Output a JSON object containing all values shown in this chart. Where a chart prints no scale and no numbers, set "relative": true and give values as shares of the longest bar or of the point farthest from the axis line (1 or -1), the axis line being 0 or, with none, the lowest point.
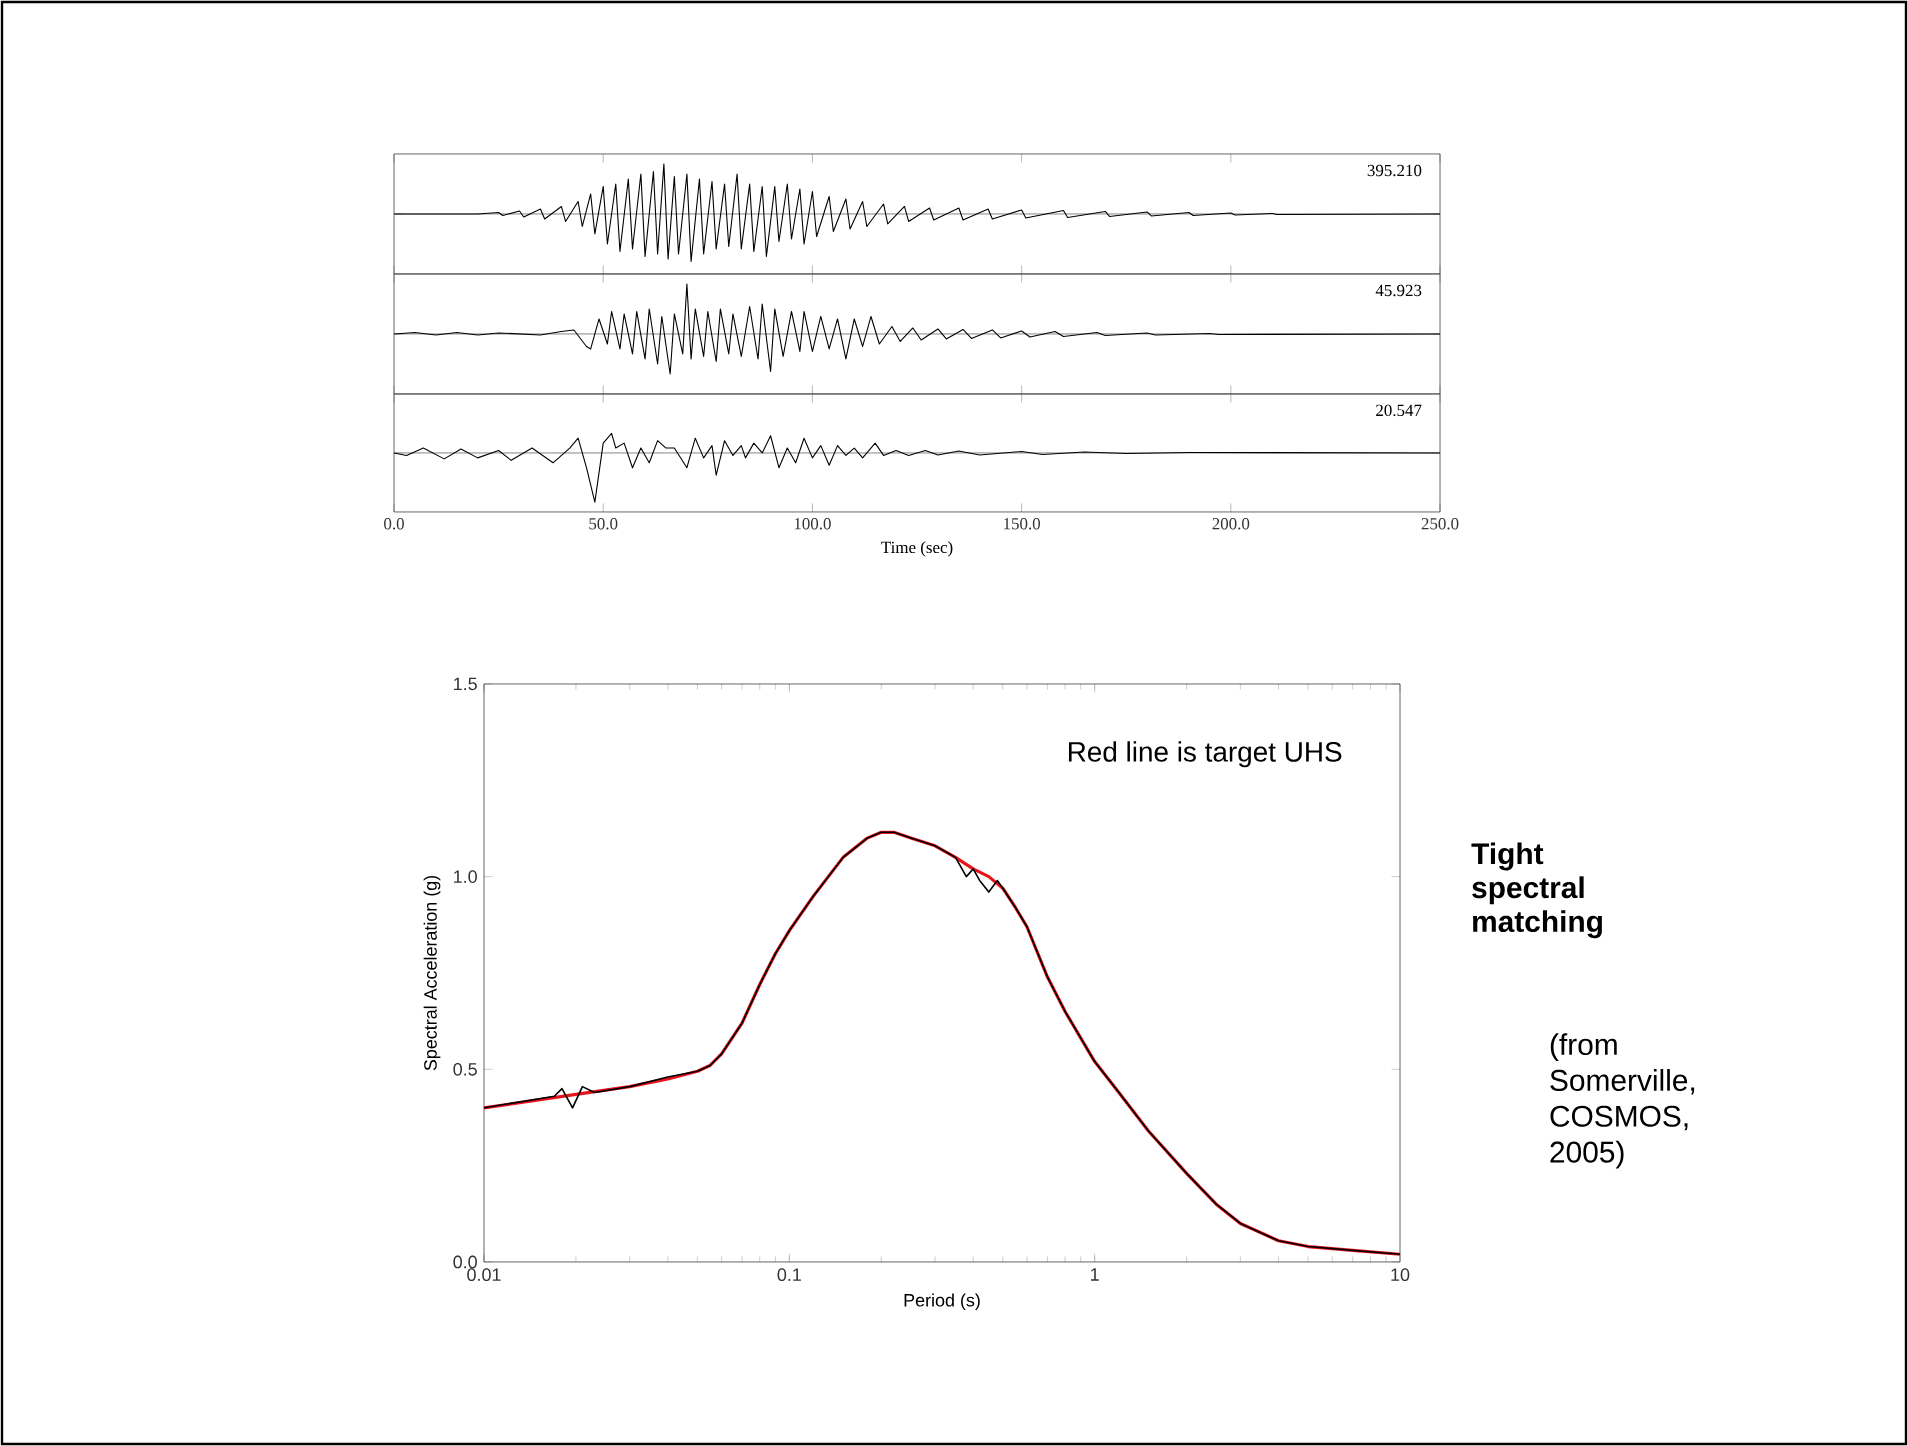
{
  "chart_data": [
    {
      "type": "line",
      "relative": true,
      "xlim": [
        0,
        250
      ],
      "xticks": [
        {
          "value": 0,
          "label": null
        },
        {
          "value": 50,
          "label": null
        },
        {
          "value": 100,
          "label": null
        },
        {
          "value": 150,
          "label": null
        },
        {
          "value": 200,
          "label": null
        },
        {
          "value": 250,
          "label": null
        }
      ],
      "tick_labels": false,
      "annotations": [
        "395.210"
      ],
      "x": [
        0,
        20,
        25,
        26,
        30,
        31,
        35,
        36,
        40,
        41,
        44,
        45,
        47,
        48,
        50,
        51,
        53,
        54,
        56,
        57,
        59,
        60,
        62,
        63,
        64.5,
        65.5,
        67,
        68,
        70,
        71,
        73,
        74,
        76,
        77,
        79,
        80,
        82,
        83,
        85,
        86,
        88,
        89,
        91,
        92,
        94,
        95,
        97,
        98,
        100,
        101,
        104,
        105,
        108,
        109,
        112,
        113,
        117,
        118,
        122,
        123,
        128,
        129,
        135,
        136,
        142,
        143,
        150,
        151,
        160,
        161,
        170,
        171,
        180,
        181,
        190,
        191,
        200,
        201,
        210,
        211,
        250
      ],
      "series": [
        {
          "color": "#000000",
          "values": [
            0,
            0,
            0.03,
            -0.03,
            0.06,
            -0.06,
            0.1,
            -0.1,
            0.15,
            -0.15,
            0.25,
            -0.25,
            0.4,
            -0.4,
            0.55,
            -0.6,
            0.6,
            -0.75,
            0.7,
            -0.7,
            0.8,
            -0.85,
            0.85,
            -0.8,
            1,
            -0.9,
            0.75,
            -0.8,
            0.8,
            -0.95,
            0.7,
            -0.8,
            0.65,
            -0.7,
            0.6,
            -0.65,
            0.8,
            -0.7,
            0.6,
            -0.75,
            0.55,
            -0.85,
            0.55,
            -0.55,
            0.6,
            -0.5,
            0.5,
            -0.6,
            0.45,
            -0.45,
            0.35,
            -0.35,
            0.3,
            -0.3,
            0.25,
            -0.25,
            0.2,
            -0.2,
            0.15,
            -0.15,
            0.12,
            -0.12,
            0.12,
            -0.12,
            0.1,
            -0.1,
            0.08,
            -0.08,
            0.07,
            -0.07,
            0.05,
            -0.05,
            0.04,
            -0.04,
            0.03,
            -0.03,
            0.02,
            -0.02,
            0.01,
            -0.01,
            0
          ]
        }
      ]
    },
    {
      "type": "line",
      "relative": true,
      "xlim": [
        0,
        250
      ],
      "xticks": [
        {
          "value": 0,
          "label": null
        },
        {
          "value": 50,
          "label": null
        },
        {
          "value": 100,
          "label": null
        },
        {
          "value": 150,
          "label": null
        },
        {
          "value": 200,
          "label": null
        },
        {
          "value": 250,
          "label": null
        }
      ],
      "tick_labels": false,
      "annotations": [
        "45.923"
      ],
      "x": [
        0,
        5,
        10,
        15,
        20,
        25,
        30,
        35,
        40,
        43,
        46,
        47,
        49,
        51,
        52,
        54,
        55,
        57,
        58,
        60,
        61,
        63,
        64,
        66,
        67,
        69,
        70,
        71,
        72,
        74,
        75,
        77,
        78,
        80,
        81,
        83,
        85,
        87,
        88,
        90,
        91,
        93,
        95,
        97,
        98,
        100,
        102,
        104,
        106,
        108,
        110,
        112,
        114,
        116,
        119,
        121,
        124,
        126,
        130,
        132,
        136,
        138,
        143,
        145,
        150,
        152,
        158,
        160,
        168,
        170,
        180,
        182,
        195,
        197,
        250
      ],
      "series": [
        {
          "color": "#000000",
          "values": [
            0,
            0.03,
            -0.02,
            0.03,
            -0.02,
            0.02,
            0,
            -0.02,
            0.05,
            0.08,
            -0.25,
            -0.3,
            0.3,
            -0.2,
            0.45,
            -0.3,
            0.4,
            -0.4,
            0.45,
            -0.5,
            0.5,
            -0.6,
            0.35,
            -0.8,
            0.4,
            -0.4,
            1,
            -0.5,
            0.5,
            -0.45,
            0.45,
            -0.55,
            0.5,
            -0.4,
            0.4,
            -0.45,
            0.55,
            -0.5,
            0.6,
            -0.75,
            0.5,
            -0.45,
            0.45,
            -0.35,
            0.45,
            -0.35,
            0.35,
            -0.3,
            0.3,
            -0.5,
            0.3,
            -0.25,
            0.35,
            -0.2,
            0.15,
            -0.15,
            0.12,
            -0.12,
            0.1,
            -0.1,
            0.09,
            -0.09,
            0.08,
            -0.08,
            0.06,
            -0.06,
            0.05,
            -0.05,
            0.03,
            -0.03,
            0.02,
            -0.02,
            0.01,
            -0.01,
            0
          ]
        }
      ]
    },
    {
      "type": "line",
      "relative": true,
      "xlim": [
        0,
        250
      ],
      "xticks": [
        {
          "value": 0,
          "label": "0.0"
        },
        {
          "value": 50,
          "label": "50.0"
        },
        {
          "value": 100,
          "label": "100.0"
        },
        {
          "value": 150,
          "label": "150.0"
        },
        {
          "value": 200,
          "label": "200.0"
        },
        {
          "value": 250,
          "label": "250.0"
        }
      ],
      "tick_labels": "x",
      "xlabel": "Time (sec)",
      "annotations": [
        "20.547"
      ],
      "x": [
        0,
        3,
        7,
        12,
        16,
        20,
        25,
        28,
        33,
        38,
        42,
        44,
        46,
        48,
        50,
        52,
        53,
        55,
        57,
        59,
        61,
        63,
        65,
        67,
        70,
        72,
        74,
        76,
        77,
        79,
        81,
        83,
        84,
        86,
        88,
        90,
        92,
        94,
        96,
        98,
        100,
        102,
        104,
        106,
        108,
        110,
        112,
        115,
        117,
        120,
        123,
        127,
        130,
        135,
        140,
        150,
        155,
        165,
        175,
        190,
        250
      ],
      "series": [
        {
          "color": "#000000",
          "values": [
            0,
            -0.05,
            0.1,
            -0.12,
            0.08,
            -0.1,
            0.05,
            -0.15,
            0.1,
            -0.2,
            0.1,
            0.3,
            -0.3,
            -1,
            0.2,
            0.4,
            0.1,
            0.2,
            -0.3,
            0.1,
            -0.2,
            0.25,
            0.1,
            0.1,
            -0.3,
            0.3,
            -0.1,
            0.15,
            -0.45,
            0.25,
            -0.05,
            0.15,
            -0.1,
            0.2,
            0,
            0.35,
            -0.3,
            0.1,
            -0.2,
            0.3,
            -0.1,
            0.15,
            -0.25,
            0.15,
            -0.05,
            0.1,
            -0.1,
            0.2,
            -0.05,
            0.05,
            -0.05,
            0.05,
            -0.04,
            0.04,
            -0.04,
            0.03,
            -0.03,
            0.02,
            -0.01,
            0.01,
            0
          ]
        }
      ]
    },
    {
      "type": "line",
      "log": "x",
      "xlabel": "Period (s)",
      "ylabel": "Spectral Acceleration (g)",
      "xlim": [
        0.01,
        10
      ],
      "ylim": [
        0,
        1.5
      ],
      "xticks": [
        0.01,
        0.1,
        1,
        10
      ],
      "yticks": [
        {
          "value": 0,
          "label": "0.0"
        },
        {
          "value": 0.5,
          "label": "0.5"
        },
        {
          "value": 1,
          "label": "1.0"
        },
        {
          "value": 1.5,
          "label": "1.5"
        }
      ],
      "annotations": [
        "Red line is target UHS",
        "Tight spectral matching",
        "(from Somerville, COSMOS, 2005)"
      ],
      "series": [
        {
          "color": "#e8141c",
          "x": [
            0.01,
            0.02,
            0.03,
            0.04,
            0.05,
            0.055,
            0.06,
            0.07,
            0.08,
            0.09,
            0.1,
            0.12,
            0.15,
            0.18,
            0.2,
            0.22,
            0.25,
            0.3,
            0.35,
            0.4,
            0.45,
            0.5,
            0.55,
            0.6,
            0.7,
            0.8,
            1,
            1.2,
            1.5,
            2,
            2.5,
            3,
            4,
            5,
            7,
            10
          ],
          "values": [
            0.4,
            0.435,
            0.455,
            0.475,
            0.495,
            0.51,
            0.54,
            0.62,
            0.72,
            0.8,
            0.86,
            0.95,
            1.05,
            1.1,
            1.115,
            1.115,
            1.1,
            1.08,
            1.05,
            1.02,
            1.0,
            0.97,
            0.92,
            0.87,
            0.74,
            0.65,
            0.52,
            0.44,
            0.34,
            0.23,
            0.15,
            0.1,
            0.055,
            0.04,
            0.03,
            0.02
          ]
        },
        {
          "color": "#000000",
          "x": [
            0.01,
            0.017,
            0.018,
            0.0195,
            0.021,
            0.023,
            0.03,
            0.04,
            0.05,
            0.055,
            0.06,
            0.07,
            0.08,
            0.09,
            0.1,
            0.12,
            0.15,
            0.18,
            0.2,
            0.22,
            0.25,
            0.3,
            0.35,
            0.38,
            0.4,
            0.42,
            0.45,
            0.48,
            0.5,
            0.55,
            0.6,
            0.7,
            0.8,
            1,
            1.2,
            1.5,
            2,
            2.5,
            3,
            4,
            5,
            7,
            10
          ],
          "values": [
            0.4,
            0.43,
            0.45,
            0.4,
            0.455,
            0.44,
            0.455,
            0.48,
            0.495,
            0.51,
            0.54,
            0.62,
            0.72,
            0.8,
            0.86,
            0.95,
            1.05,
            1.1,
            1.115,
            1.115,
            1.1,
            1.08,
            1.05,
            1.0,
            1.02,
            0.99,
            0.96,
            0.99,
            0.97,
            0.92,
            0.87,
            0.74,
            0.65,
            0.52,
            0.44,
            0.34,
            0.23,
            0.15,
            0.1,
            0.055,
            0.04,
            0.03,
            0.02
          ]
        }
      ]
    }
  ]
}
